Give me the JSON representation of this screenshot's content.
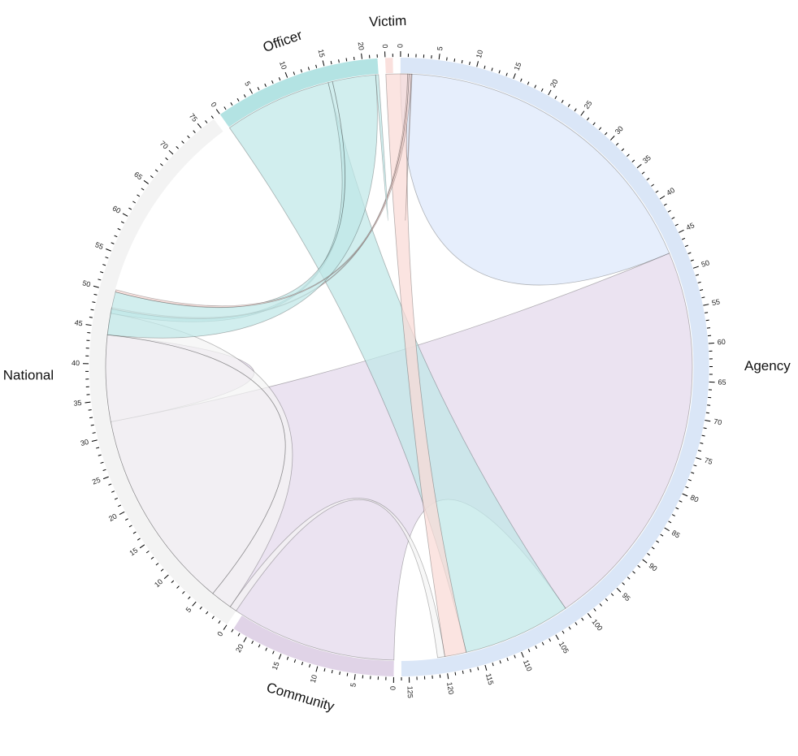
{
  "chart_data": {
    "type": "chord",
    "groups": [
      {
        "name": "Agency",
        "total": 126,
        "fill": "#dae6f7"
      },
      {
        "name": "Community",
        "total": 22,
        "fill": "#e0d3e7"
      },
      {
        "name": "National",
        "total": 77,
        "fill": "#f3f3f3"
      },
      {
        "name": "Officer",
        "total": 22,
        "fill": "#b3e3e3"
      },
      {
        "name": "Victim",
        "total": 1,
        "fill": "#fae0dd"
      }
    ],
    "ribbon_colors": {
      "Agency": "#dde8fb",
      "Community": "#e3d8eb",
      "National": "#f4f4f4",
      "Officer": "#bfe8e8",
      "Victim": "#fad9d5"
    },
    "ribbons": [
      {
        "source": "Agency",
        "target": "Agency",
        "value": 47
      },
      {
        "source": "Community",
        "target": "Agency",
        "value": 55
      },
      {
        "source": "Officer",
        "target": "Agency",
        "value": 15
      },
      {
        "source": "Victim",
        "target": "Agency",
        "value": 3
      },
      {
        "source": "National",
        "target": "Agency",
        "value": 1
      },
      {
        "source": "Community",
        "target": "Community",
        "value": 12
      },
      {
        "source": "National",
        "target": "Community",
        "value": 3
      },
      {
        "source": "Officer",
        "target": "Community",
        "value": 0.6
      },
      {
        "source": "Victim",
        "target": "Community",
        "value": 0.2
      },
      {
        "source": "National",
        "target": "National",
        "value": 40
      },
      {
        "source": "Officer",
        "target": "National",
        "value": 6
      },
      {
        "source": "Victim",
        "target": "National",
        "value": 0.3
      },
      {
        "source": "Officer",
        "target": "Officer",
        "value": 0.4
      },
      {
        "source": "Victim",
        "target": "Victim",
        "value": 0.1
      }
    ],
    "tick_step": 1,
    "label_step": 5,
    "legend": "none"
  }
}
